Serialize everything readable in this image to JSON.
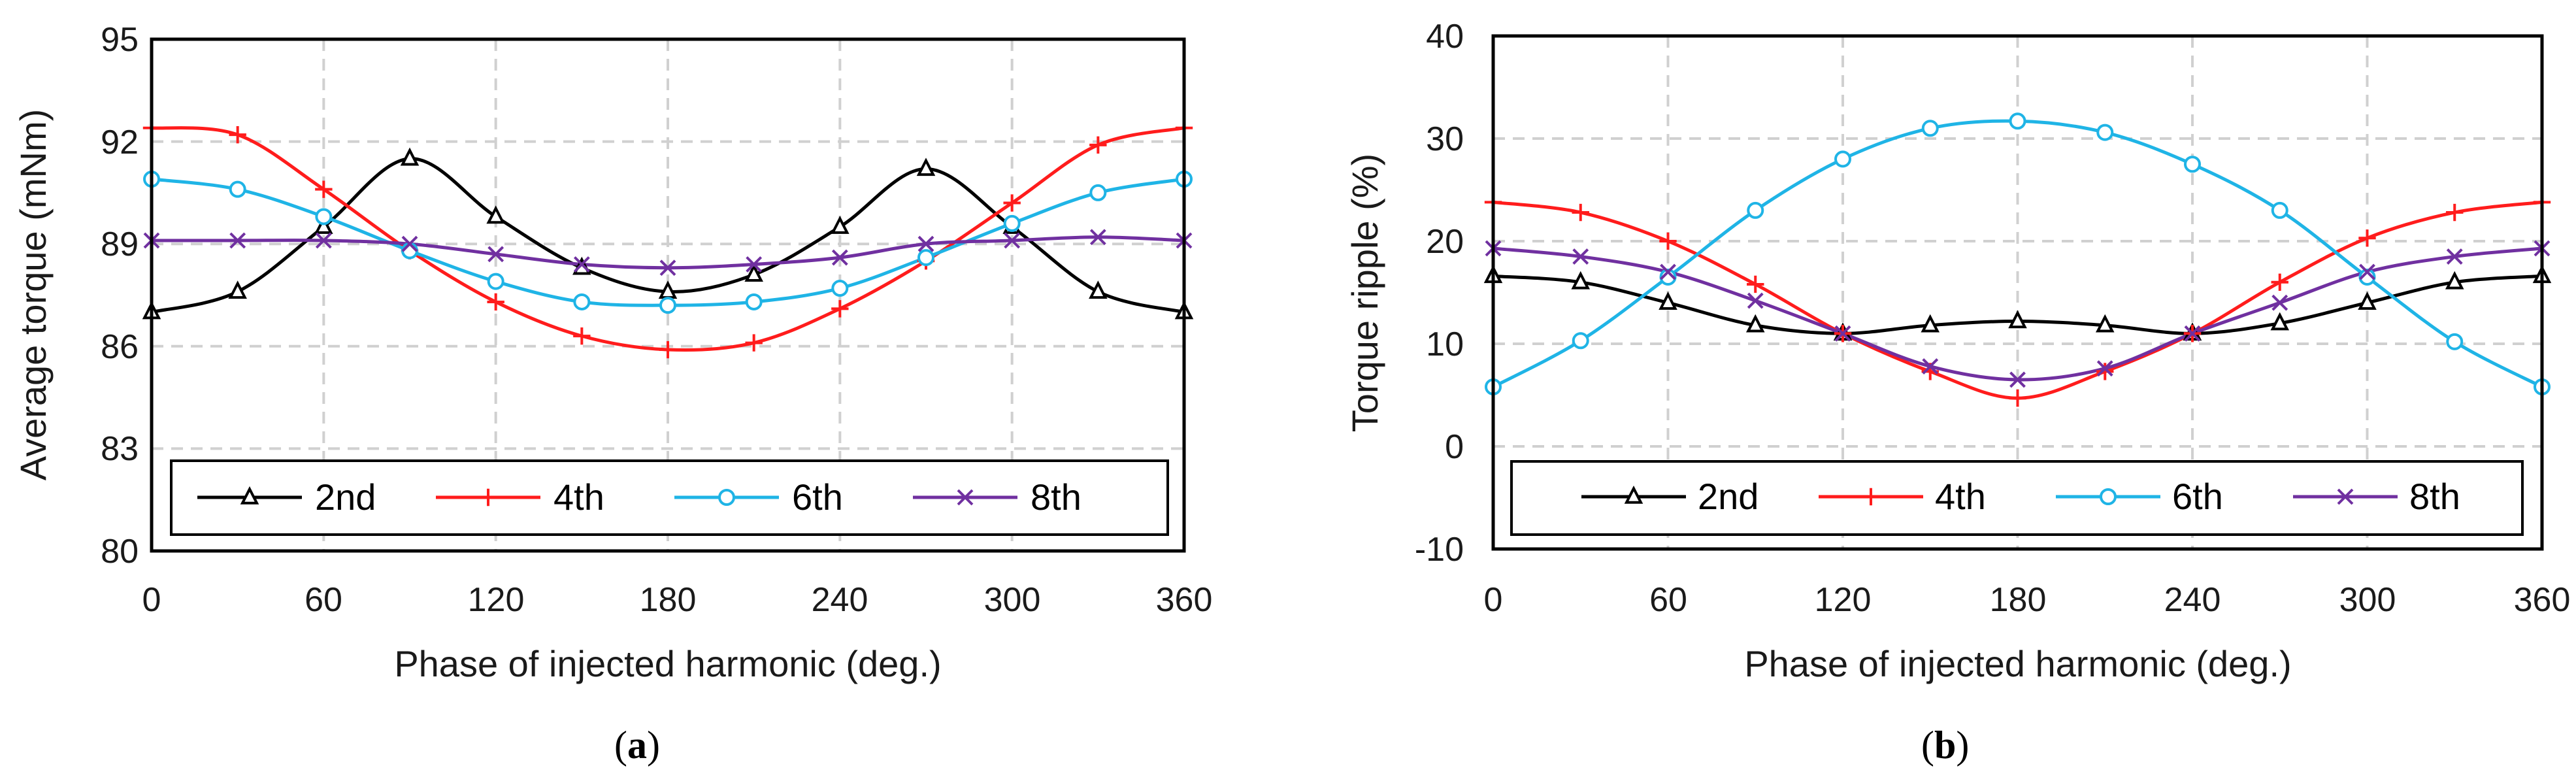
{
  "colors": {
    "2nd": "#000000",
    "4th": "#ff1c1c",
    "6th": "#1fb4e6",
    "8th": "#7030a0",
    "grid": "#d0d0d0"
  },
  "chart_data": [
    {
      "type": "line",
      "panel_label": {
        "open": "(",
        "letter": "a",
        "close": ")"
      },
      "xlabel": "Phase of injected harmonic (deg.)",
      "ylabel": "Average torque (mNm)",
      "xlim": [
        0,
        360
      ],
      "ylim": [
        80,
        95
      ],
      "xticks": [
        0,
        60,
        120,
        180,
        240,
        300,
        360
      ],
      "yticks": [
        80,
        83,
        86,
        89,
        92,
        95
      ],
      "grid": "dashed",
      "legend_position": "bottom",
      "x": [
        0,
        30,
        60,
        90,
        120,
        150,
        180,
        210,
        240,
        270,
        300,
        330,
        360
      ],
      "series": [
        {
          "name": "2nd",
          "marker": "triangle",
          "values": [
            87.0,
            87.6,
            89.5,
            91.5,
            89.8,
            88.3,
            87.6,
            88.1,
            89.5,
            91.2,
            89.5,
            87.6,
            87.0
          ]
        },
        {
          "name": "4th",
          "marker": "plus",
          "values": [
            92.4,
            92.2,
            90.6,
            88.8,
            87.3,
            86.3,
            85.9,
            86.1,
            87.1,
            88.5,
            90.2,
            91.9,
            92.4
          ]
        },
        {
          "name": "6th",
          "marker": "circle",
          "values": [
            90.9,
            90.6,
            89.8,
            88.8,
            87.9,
            87.3,
            87.2,
            87.3,
            87.7,
            88.6,
            89.6,
            90.5,
            90.9
          ]
        },
        {
          "name": "8th",
          "marker": "x",
          "values": [
            89.1,
            89.1,
            89.1,
            89.0,
            88.7,
            88.4,
            88.3,
            88.4,
            88.6,
            89.0,
            89.1,
            89.2,
            89.1
          ]
        }
      ]
    },
    {
      "type": "line",
      "panel_label": {
        "open": "(",
        "letter": "b",
        "close": ")"
      },
      "xlabel": "Phase of injected harmonic (deg.)",
      "ylabel": "Torque ripple (%)",
      "xlim": [
        0,
        360
      ],
      "ylim": [
        -10,
        40
      ],
      "xticks": [
        0,
        60,
        120,
        180,
        240,
        300,
        360
      ],
      "yticks": [
        -10,
        0,
        10,
        20,
        30,
        40
      ],
      "grid": "dashed",
      "legend_position": "bottom",
      "x": [
        0,
        30,
        60,
        90,
        120,
        150,
        180,
        210,
        240,
        270,
        300,
        330,
        360
      ],
      "series": [
        {
          "name": "2nd",
          "marker": "triangle",
          "values": [
            16.6,
            16.0,
            14.0,
            11.8,
            11.0,
            11.8,
            12.2,
            11.8,
            11.0,
            12.0,
            14.0,
            16.0,
            16.6
          ]
        },
        {
          "name": "4th",
          "marker": "plus",
          "values": [
            23.8,
            22.8,
            20.0,
            15.8,
            11.0,
            7.3,
            4.7,
            7.3,
            11.0,
            16.0,
            20.3,
            22.8,
            23.8
          ]
        },
        {
          "name": "6th",
          "marker": "circle",
          "values": [
            5.8,
            10.3,
            16.5,
            23.0,
            28.0,
            31.0,
            31.7,
            30.6,
            27.5,
            23.0,
            16.5,
            10.2,
            5.8
          ]
        },
        {
          "name": "8th",
          "marker": "x",
          "values": [
            19.3,
            18.5,
            17.0,
            14.2,
            11.0,
            7.8,
            6.5,
            7.6,
            11.0,
            14.0,
            17.0,
            18.5,
            19.3
          ]
        }
      ]
    }
  ]
}
